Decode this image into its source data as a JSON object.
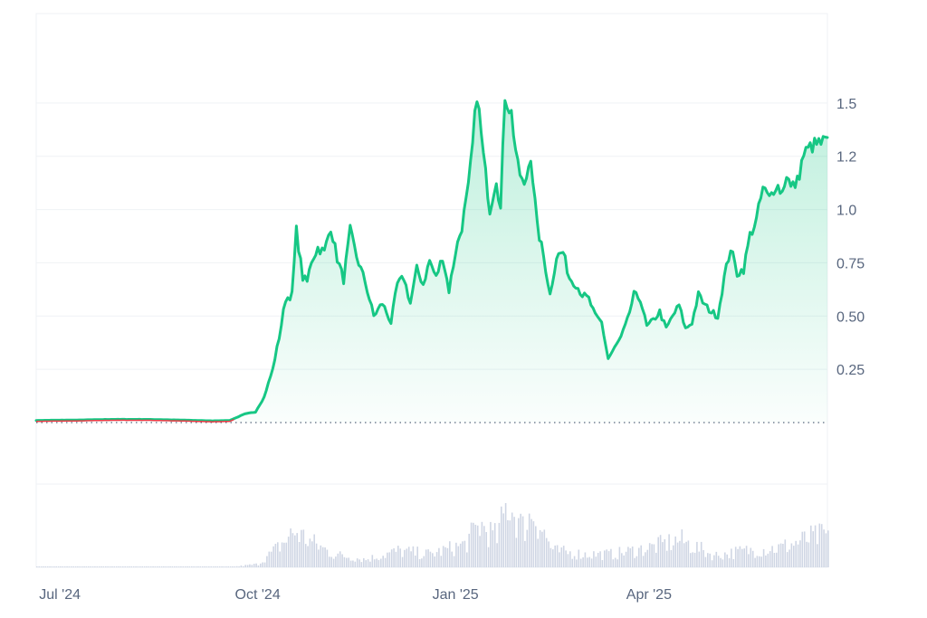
{
  "chart_data": {
    "type": "area",
    "title": "",
    "xlabel": "",
    "ylabel": "",
    "ylim": [
      0,
      1.75
    ],
    "y_ticks": [
      "0.25",
      "0.50",
      "0.75",
      "1.0",
      "1.2",
      "1.5"
    ],
    "y_tick_values": [
      0.25,
      0.5,
      0.75,
      1.0,
      1.25,
      1.5
    ],
    "x_ticks": [
      "Jul '24",
      "Oct '24",
      "Jan '25",
      "Apr '25"
    ],
    "x_tick_dates": [
      "2024-07-01",
      "2024-10-01",
      "2025-01-01",
      "2025-04-01"
    ],
    "x_range": [
      "2024-06-20",
      "2025-06-23"
    ],
    "baseline": 0,
    "grid": true,
    "legend": "none",
    "colors": {
      "line": "#16c784",
      "pre_line": "#ea3943",
      "volume": "#cfd6e4",
      "grid": "#eff2f5",
      "axis_text": "#58667e"
    },
    "series": [
      {
        "points": [
          [
            "2024-06-20",
            0.01
          ],
          [
            "2024-07-10",
            0.012
          ],
          [
            "2024-07-25",
            0.015
          ],
          [
            "2024-08-10",
            0.015
          ],
          [
            "2024-08-25",
            0.012
          ],
          [
            "2024-09-10",
            0.008
          ],
          [
            "2024-09-18",
            0.01
          ],
          [
            "2024-09-25",
            0.04
          ],
          [
            "2024-09-30",
            0.05
          ],
          [
            "2024-10-04",
            0.12
          ],
          [
            "2024-10-08",
            0.25
          ],
          [
            "2024-10-11",
            0.4
          ],
          [
            "2024-10-14",
            0.58
          ],
          [
            "2024-10-17",
            0.6
          ],
          [
            "2024-10-19",
            0.9
          ],
          [
            "2024-10-22",
            0.68
          ],
          [
            "2024-10-24",
            0.66
          ],
          [
            "2024-10-26",
            0.76
          ],
          [
            "2024-10-29",
            0.82
          ],
          [
            "2024-11-01",
            0.8
          ],
          [
            "2024-11-04",
            0.92
          ],
          [
            "2024-11-07",
            0.77
          ],
          [
            "2024-11-10",
            0.67
          ],
          [
            "2024-11-13",
            0.9
          ],
          [
            "2024-11-16",
            0.78
          ],
          [
            "2024-11-20",
            0.66
          ],
          [
            "2024-11-24",
            0.5
          ],
          [
            "2024-11-28",
            0.56
          ],
          [
            "2024-12-02",
            0.47
          ],
          [
            "2024-12-05",
            0.65
          ],
          [
            "2024-12-08",
            0.68
          ],
          [
            "2024-12-11",
            0.56
          ],
          [
            "2024-12-14",
            0.72
          ],
          [
            "2024-12-17",
            0.65
          ],
          [
            "2024-12-20",
            0.76
          ],
          [
            "2024-12-23",
            0.68
          ],
          [
            "2024-12-26",
            0.78
          ],
          [
            "2024-12-29",
            0.62
          ],
          [
            "2025-01-01",
            0.8
          ],
          [
            "2025-01-04",
            0.92
          ],
          [
            "2025-01-07",
            1.1
          ],
          [
            "2025-01-09",
            1.3
          ],
          [
            "2025-01-11",
            1.55
          ],
          [
            "2025-01-14",
            1.25
          ],
          [
            "2025-01-17",
            1.0
          ],
          [
            "2025-01-20",
            1.15
          ],
          [
            "2025-01-22",
            1.0
          ],
          [
            "2025-01-24",
            1.54
          ],
          [
            "2025-01-27",
            1.45
          ],
          [
            "2025-01-30",
            1.2
          ],
          [
            "2025-02-02",
            1.1
          ],
          [
            "2025-02-05",
            1.26
          ],
          [
            "2025-02-08",
            0.92
          ],
          [
            "2025-02-11",
            0.78
          ],
          [
            "2025-02-14",
            0.6
          ],
          [
            "2025-02-17",
            0.78
          ],
          [
            "2025-02-20",
            0.8
          ],
          [
            "2025-02-23",
            0.68
          ],
          [
            "2025-02-26",
            0.65
          ],
          [
            "2025-03-01",
            0.6
          ],
          [
            "2025-03-04",
            0.58
          ],
          [
            "2025-03-07",
            0.5
          ],
          [
            "2025-03-10",
            0.47
          ],
          [
            "2025-03-13",
            0.3
          ],
          [
            "2025-03-16",
            0.35
          ],
          [
            "2025-03-19",
            0.4
          ],
          [
            "2025-03-22",
            0.48
          ],
          [
            "2025-03-25",
            0.6
          ],
          [
            "2025-03-28",
            0.58
          ],
          [
            "2025-03-31",
            0.45
          ],
          [
            "2025-04-03",
            0.48
          ],
          [
            "2025-04-06",
            0.52
          ],
          [
            "2025-04-09",
            0.44
          ],
          [
            "2025-04-12",
            0.5
          ],
          [
            "2025-04-15",
            0.55
          ],
          [
            "2025-04-18",
            0.44
          ],
          [
            "2025-04-21",
            0.47
          ],
          [
            "2025-04-24",
            0.6
          ],
          [
            "2025-04-27",
            0.55
          ],
          [
            "2025-04-30",
            0.52
          ],
          [
            "2025-05-03",
            0.5
          ],
          [
            "2025-05-06",
            0.68
          ],
          [
            "2025-05-09",
            0.82
          ],
          [
            "2025-05-12",
            0.7
          ],
          [
            "2025-05-15",
            0.72
          ],
          [
            "2025-05-18",
            0.88
          ],
          [
            "2025-05-21",
            0.95
          ],
          [
            "2025-05-24",
            1.1
          ],
          [
            "2025-05-27",
            1.05
          ],
          [
            "2025-05-30",
            1.12
          ],
          [
            "2025-06-02",
            1.08
          ],
          [
            "2025-06-04",
            1.17
          ],
          [
            "2025-06-06",
            1.1
          ],
          [
            "2025-06-09",
            1.13
          ],
          [
            "2025-06-12",
            1.26
          ],
          [
            "2025-06-16",
            1.3
          ],
          [
            "2025-06-23",
            1.32
          ]
        ]
      }
    ],
    "volume": {
      "points": [
        [
          "2024-06-20",
          0.01
        ],
        [
          "2024-09-20",
          0.01
        ],
        [
          "2024-10-01",
          0.05
        ],
        [
          "2024-10-10",
          0.3
        ],
        [
          "2024-10-18",
          0.55
        ],
        [
          "2024-10-25",
          0.4
        ],
        [
          "2024-11-05",
          0.2
        ],
        [
          "2024-11-20",
          0.12
        ],
        [
          "2024-12-05",
          0.25
        ],
        [
          "2024-12-20",
          0.2
        ],
        [
          "2025-01-05",
          0.35
        ],
        [
          "2025-01-12",
          0.65
        ],
        [
          "2025-01-20",
          0.45
        ],
        [
          "2025-01-25",
          1.0
        ],
        [
          "2025-02-01",
          0.6
        ],
        [
          "2025-02-06",
          0.85
        ],
        [
          "2025-02-15",
          0.25
        ],
        [
          "2025-03-01",
          0.2
        ],
        [
          "2025-03-15",
          0.2
        ],
        [
          "2025-04-01",
          0.3
        ],
        [
          "2025-04-15",
          0.42
        ],
        [
          "2025-05-01",
          0.18
        ],
        [
          "2025-05-15",
          0.25
        ],
        [
          "2025-06-01",
          0.3
        ],
        [
          "2025-06-15",
          0.45
        ],
        [
          "2025-06-23",
          0.5
        ]
      ]
    }
  }
}
